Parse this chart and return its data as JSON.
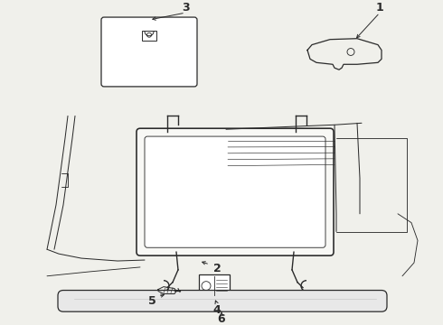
{
  "background_color": "#f0f0eb",
  "line_color": "#2a2a2a",
  "fig_width": 4.9,
  "fig_height": 3.6,
  "dpi": 100
}
